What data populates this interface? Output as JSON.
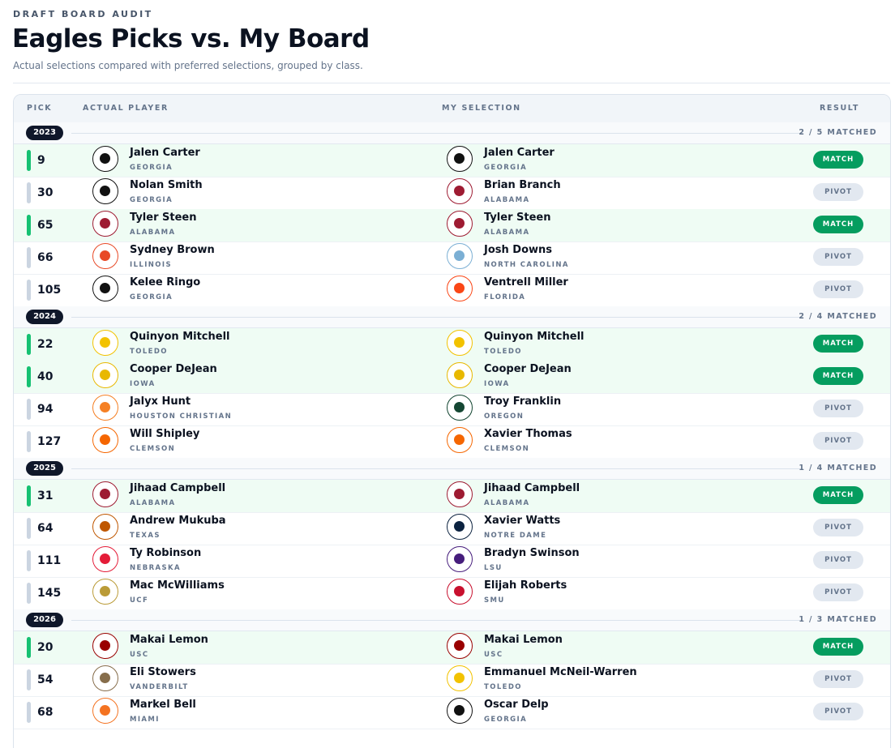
{
  "header": {
    "kicker": "DRAFT BOARD AUDIT",
    "title": "Eagles Picks vs. My Board",
    "subtitle": "Actual selections compared with preferred selections, grouped by class."
  },
  "table": {
    "columns": [
      "PICK",
      "ACTUAL PLAYER",
      "MY SELECTION",
      "RESULT"
    ],
    "groups": [
      {
        "year": "2023",
        "summary": "2 / 5 MATCHED",
        "rows": [
          {
            "pick": 9,
            "actual": {
              "name": "Jalen Carter",
              "school": "GEORGIA",
              "color": "#111111"
            },
            "mine": {
              "name": "Jalen Carter",
              "school": "GEORGIA",
              "color": "#111111"
            },
            "result": "MATCH"
          },
          {
            "pick": 30,
            "actual": {
              "name": "Nolan Smith",
              "school": "GEORGIA",
              "color": "#111111"
            },
            "mine": {
              "name": "Brian Branch",
              "school": "ALABAMA",
              "color": "#9e1b32"
            },
            "result": "PIVOT"
          },
          {
            "pick": 65,
            "actual": {
              "name": "Tyler Steen",
              "school": "ALABAMA",
              "color": "#9e1b32"
            },
            "mine": {
              "name": "Tyler Steen",
              "school": "ALABAMA",
              "color": "#9e1b32"
            },
            "result": "MATCH"
          },
          {
            "pick": 66,
            "actual": {
              "name": "Sydney Brown",
              "school": "ILLINOIS",
              "color": "#e84a27"
            },
            "mine": {
              "name": "Josh Downs",
              "school": "NORTH CAROLINA",
              "color": "#7bafd4"
            },
            "result": "PIVOT"
          },
          {
            "pick": 105,
            "actual": {
              "name": "Kelee Ringo",
              "school": "GEORGIA",
              "color": "#111111"
            },
            "mine": {
              "name": "Ventrell Miller",
              "school": "FLORIDA",
              "color": "#fa4616"
            },
            "result": "PIVOT"
          }
        ]
      },
      {
        "year": "2024",
        "summary": "2 / 4 MATCHED",
        "rows": [
          {
            "pick": 22,
            "actual": {
              "name": "Quinyon Mitchell",
              "school": "TOLEDO",
              "color": "#f2c200"
            },
            "mine": {
              "name": "Quinyon Mitchell",
              "school": "TOLEDO",
              "color": "#f2c200"
            },
            "result": "MATCH"
          },
          {
            "pick": 40,
            "actual": {
              "name": "Cooper DeJean",
              "school": "IOWA",
              "color": "#e8b800"
            },
            "mine": {
              "name": "Cooper DeJean",
              "school": "IOWA",
              "color": "#e8b800"
            },
            "result": "MATCH"
          },
          {
            "pick": 94,
            "actual": {
              "name": "Jalyx Hunt",
              "school": "HOUSTON CHRISTIAN",
              "color": "#f58025"
            },
            "mine": {
              "name": "Troy Franklin",
              "school": "OREGON",
              "color": "#154733"
            },
            "result": "PIVOT"
          },
          {
            "pick": 127,
            "actual": {
              "name": "Will Shipley",
              "school": "CLEMSON",
              "color": "#f56600"
            },
            "mine": {
              "name": "Xavier Thomas",
              "school": "CLEMSON",
              "color": "#f56600"
            },
            "result": "PIVOT"
          }
        ]
      },
      {
        "year": "2025",
        "summary": "1 / 4 MATCHED",
        "rows": [
          {
            "pick": 31,
            "actual": {
              "name": "Jihaad Campbell",
              "school": "ALABAMA",
              "color": "#9e1b32"
            },
            "mine": {
              "name": "Jihaad Campbell",
              "school": "ALABAMA",
              "color": "#9e1b32"
            },
            "result": "MATCH"
          },
          {
            "pick": 64,
            "actual": {
              "name": "Andrew Mukuba",
              "school": "TEXAS",
              "color": "#bf5700"
            },
            "mine": {
              "name": "Xavier Watts",
              "school": "NOTRE DAME",
              "color": "#0c2340"
            },
            "result": "PIVOT"
          },
          {
            "pick": 111,
            "actual": {
              "name": "Ty Robinson",
              "school": "NEBRASKA",
              "color": "#e41c38"
            },
            "mine": {
              "name": "Bradyn Swinson",
              "school": "LSU",
              "color": "#461d7c"
            },
            "result": "PIVOT"
          },
          {
            "pick": 145,
            "actual": {
              "name": "Mac McWilliams",
              "school": "UCF",
              "color": "#ba9b37"
            },
            "mine": {
              "name": "Elijah Roberts",
              "school": "SMU",
              "color": "#c8102e"
            },
            "result": "PIVOT"
          }
        ]
      },
      {
        "year": "2026",
        "summary": "1 / 3 MATCHED",
        "rows": [
          {
            "pick": 20,
            "actual": {
              "name": "Makai Lemon",
              "school": "USC",
              "color": "#990000"
            },
            "mine": {
              "name": "Makai Lemon",
              "school": "USC",
              "color": "#990000"
            },
            "result": "MATCH"
          },
          {
            "pick": 54,
            "actual": {
              "name": "Eli Stowers",
              "school": "VANDERBILT",
              "color": "#866d4b"
            },
            "mine": {
              "name": "Emmanuel McNeil-Warren",
              "school": "TOLEDO",
              "color": "#f2c200"
            },
            "result": "PIVOT"
          },
          {
            "pick": 68,
            "actual": {
              "name": "Markel Bell",
              "school": "MIAMI",
              "color": "#f47321"
            },
            "mine": {
              "name": "Oscar Delp",
              "school": "GEORGIA",
              "color": "#111111"
            },
            "result": "PIVOT"
          }
        ]
      }
    ]
  }
}
